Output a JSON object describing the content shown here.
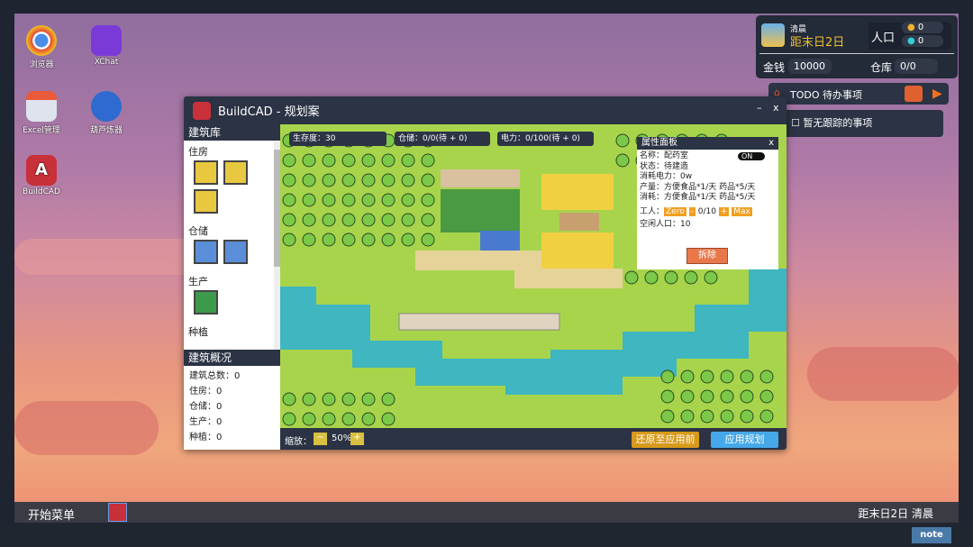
{
  "desktop": {
    "icons": [
      {
        "label": "浏览器",
        "icon": "chrome-icon"
      },
      {
        "label": "XChat",
        "icon": "chat-icon"
      },
      {
        "label": "Excel管理",
        "icon": "calendar-icon"
      },
      {
        "label": "葫芦炼器",
        "icon": "infinity-icon"
      },
      {
        "label": "BuildCAD",
        "icon": "buildcad-icon"
      }
    ]
  },
  "hud": {
    "time_of_day": "清晨",
    "countdown": "距末日2日",
    "population_label": "人口",
    "pop_a": "0",
    "pop_b": "0",
    "money_label": "金钱",
    "money": "10000",
    "storage_label": "仓库",
    "storage": "0/0"
  },
  "todo": {
    "title": "TODO 待办事项",
    "empty": "☐ 暂无跟踪的事项"
  },
  "window": {
    "title": "BuildCAD - 规划案",
    "minimize": "–",
    "close": "x"
  },
  "library": {
    "title": "建筑库",
    "categories": [
      {
        "label": "住房",
        "colors": [
          "#e8c840",
          "#e8c840",
          "#e8c840"
        ]
      },
      {
        "label": "仓储",
        "colors": [
          "#5a8ed8",
          "#5a8ed8"
        ]
      },
      {
        "label": "生产",
        "colors": [
          "#3c9a4c"
        ]
      },
      {
        "label": "种植",
        "colors": []
      }
    ]
  },
  "overview": {
    "title": "建筑概况",
    "total": "建筑总数：0",
    "housing": "住房：0",
    "storage": "仓储：0",
    "production": "生产：0",
    "planting": "种植：0"
  },
  "map_stats": {
    "survival": "生存度：30",
    "storage": "仓储：0/0(待 + 0)",
    "power": "电力：0/100(待 + 0)"
  },
  "props": {
    "title": "属性面板",
    "close": "x",
    "toggle": "ON",
    "name": "名称：配药室",
    "status": "状态：待建造",
    "power": "消耗电力：0w",
    "output": "产量：方便食品*1/天  药品*5/天",
    "consume": "消耗：方便食品*1/天  药品*5/天",
    "workers_label": "工人：",
    "zero": "Zero",
    "minus": "-",
    "workers": "0/10",
    "plus": "+",
    "max": "Max",
    "idle": "空闲人口：10",
    "demolish": "拆除"
  },
  "mapbar": {
    "zoom_label": "缩放：",
    "zoom_minus": "−",
    "zoom": "50%",
    "zoom_plus": "+",
    "revert": "还原至应用前",
    "apply": "应用规划"
  },
  "taskbar": {
    "start": "开始菜单",
    "clock": "距末日2日 清晨"
  },
  "corner_logo": "note",
  "colors": {
    "panel": "#2b3344",
    "grass": "#a8d44c",
    "water": "#3fb6c0",
    "accent_orange": "#f0a020",
    "apply_blue": "#46a8e8"
  }
}
